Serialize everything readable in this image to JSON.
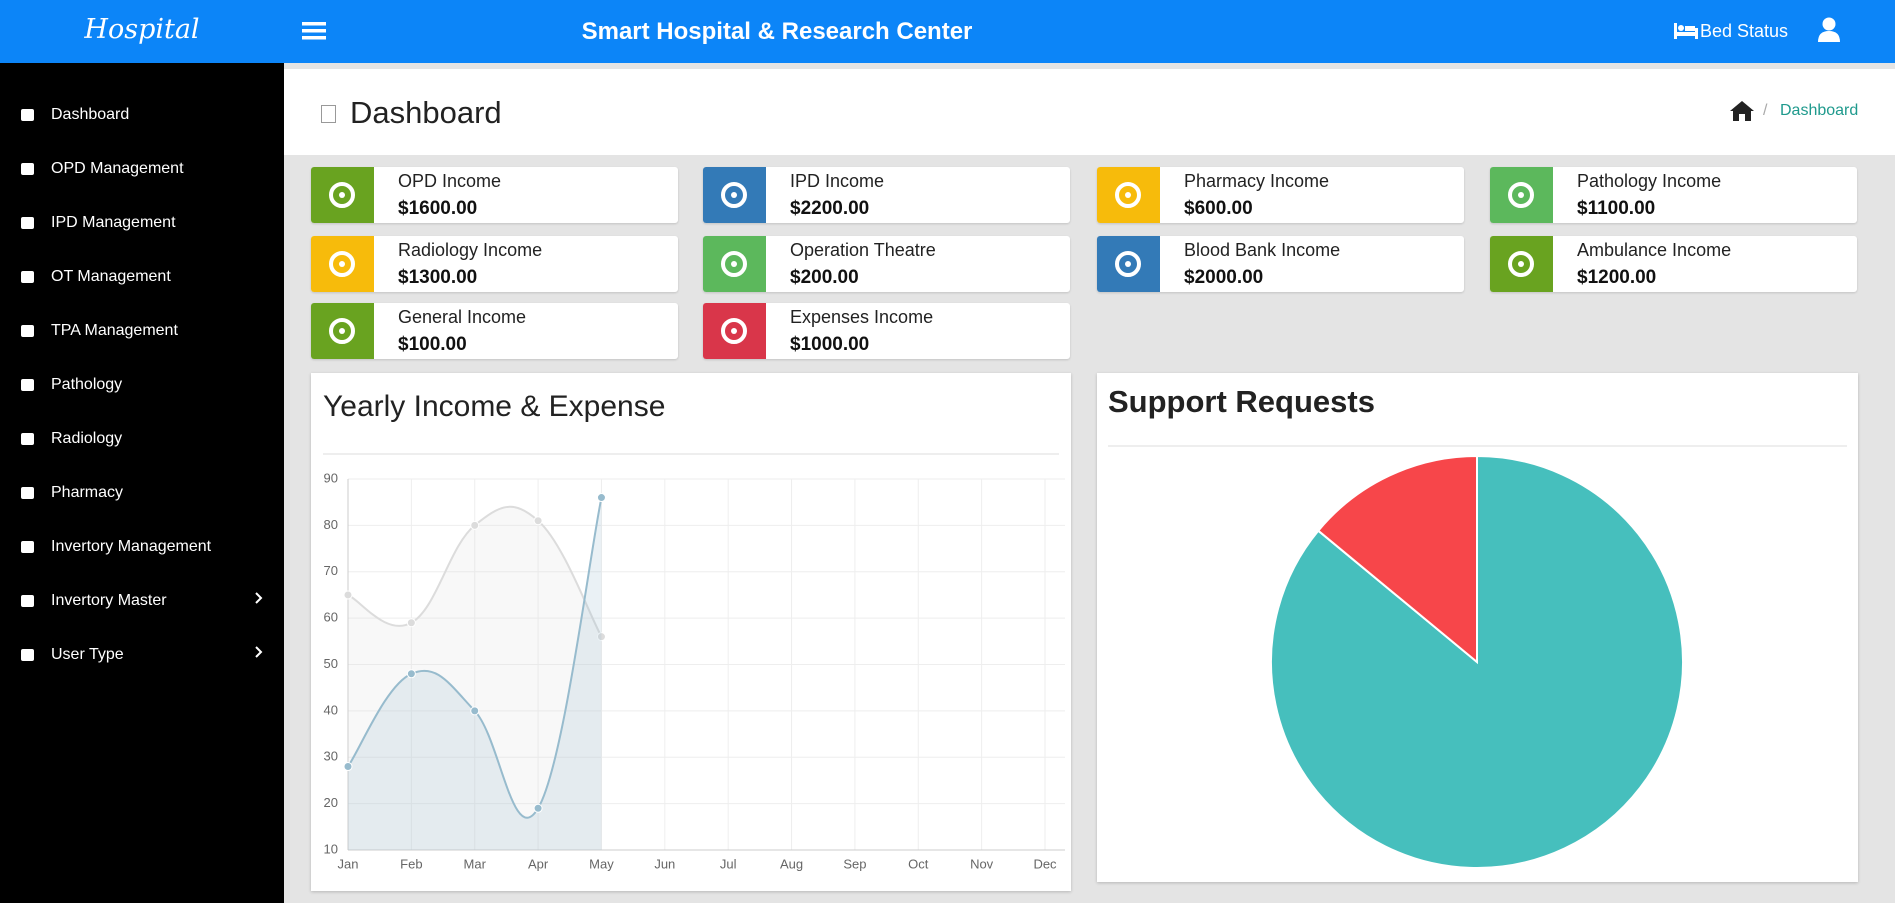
{
  "header": {
    "brand": "Hospital",
    "title": "Smart Hospital & Research Center",
    "bed_status": "Bed Status"
  },
  "sidebar": {
    "items": [
      "Dashboard",
      "OPD Management",
      "IPD Management",
      "OT Management",
      "TPA Management",
      "Pathology",
      "Radiology",
      "Pharmacy",
      "Invertory Management",
      "Invertory Master",
      "User Type"
    ]
  },
  "page": {
    "title": "Dashboard",
    "breadcrumb": "Dashboard"
  },
  "cards": [
    {
      "label": "OPD Income",
      "value": "$1600.00",
      "color": "#69a320"
    },
    {
      "label": "IPD Income",
      "value": "$2200.00",
      "color": "#337ab7"
    },
    {
      "label": "Pharmacy Income",
      "value": "$600.00",
      "color": "#f7bb0b"
    },
    {
      "label": "Pathology Income",
      "value": "$1100.00",
      "color": "#5cb85c"
    },
    {
      "label": "Radiology Income",
      "value": "$1300.00",
      "color": "#f7bb0b"
    },
    {
      "label": "Operation Theatre",
      "value": "$200.00",
      "color": "#5cb85c"
    },
    {
      "label": "Blood Bank Income",
      "value": "$2000.00",
      "color": "#337ab7"
    },
    {
      "label": "Ambulance Income",
      "value": "$1200.00",
      "color": "#69a320"
    },
    {
      "label": "General Income",
      "value": "$100.00",
      "color": "#69a320"
    },
    {
      "label": "Expenses Income",
      "value": "$1000.00",
      "color": "#d9364a"
    }
  ],
  "chart_data": [
    {
      "type": "line",
      "title": "Yearly Income & Expense",
      "categories": [
        "Jan",
        "Feb",
        "Mar",
        "Apr",
        "May",
        "Jun",
        "Jul",
        "Aug",
        "Sep",
        "Oct",
        "Nov",
        "Dec"
      ],
      "series": [
        {
          "color": "#dcdcdc",
          "values": [
            65,
            59,
            80,
            81,
            56,
            null,
            null,
            null,
            null,
            null,
            null,
            null
          ]
        },
        {
          "color": "#97bbcd",
          "values": [
            28,
            48,
            40,
            19,
            86,
            null,
            null,
            null,
            null,
            null,
            null,
            null
          ]
        }
      ],
      "ylim": [
        10,
        90
      ],
      "yticks": [
        10,
        20,
        30,
        40,
        50,
        60,
        70,
        80,
        90
      ],
      "grid": true
    },
    {
      "type": "pie",
      "title": "Support Requests",
      "values": [
        86,
        14
      ],
      "colors": [
        "#46bfbd",
        "#f7464a"
      ]
    }
  ]
}
